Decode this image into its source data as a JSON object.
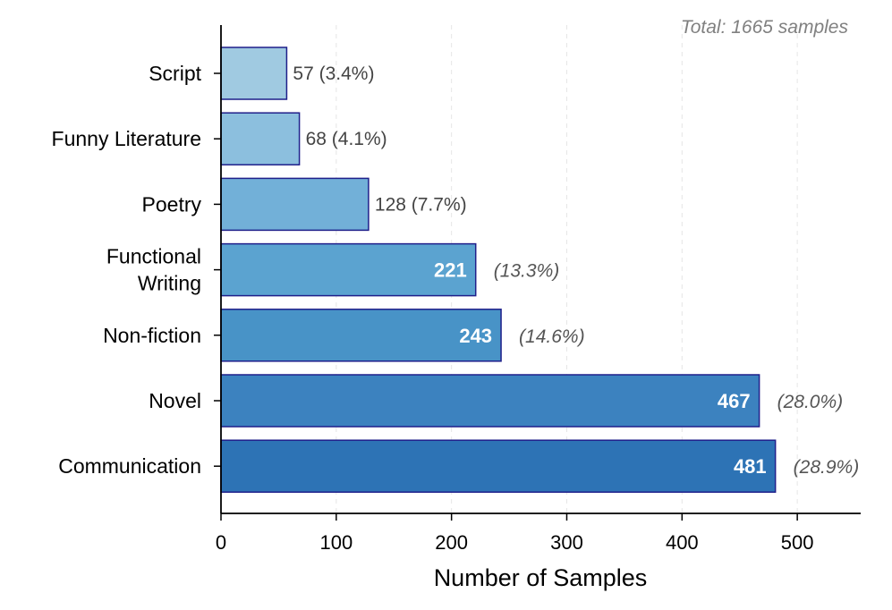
{
  "chart_data": {
    "type": "bar",
    "orientation": "horizontal",
    "categories": [
      "Script",
      "Funny Literature",
      "Poetry",
      "Functional Writing",
      "Non-fiction",
      "Novel",
      "Communication"
    ],
    "category_display": [
      [
        "Script"
      ],
      [
        "Funny Literature"
      ],
      [
        "Poetry"
      ],
      [
        "Functional",
        "Writing"
      ],
      [
        "Non-fiction"
      ],
      [
        "Novel"
      ],
      [
        "Communication"
      ]
    ],
    "values": [
      57,
      68,
      128,
      221,
      243,
      467,
      481
    ],
    "percent_labels": [
      "(3.4%)",
      "(4.1%)",
      "(7.7%)",
      "(13.3%)",
      "(14.6%)",
      "(28.0%)",
      "(28.9%)"
    ],
    "colors": [
      "#a0cae1",
      "#8cbfde",
      "#72b0d8",
      "#5ba3d0",
      "#4893c7",
      "#3c82bf",
      "#2d73b5"
    ],
    "edge_color": "#1f1f8a",
    "inside_label_threshold": 200,
    "xlabel": "Number of Samples",
    "ylabel": "",
    "title": "",
    "xlim": [
      0,
      555
    ],
    "x_ticks": [
      0,
      100,
      200,
      300,
      400,
      500
    ],
    "x_tick_labels": [
      "0",
      "100",
      "200",
      "300",
      "400",
      "500"
    ],
    "grid": "vertical dashed, light",
    "annotation": "Total: 1665 samples"
  }
}
